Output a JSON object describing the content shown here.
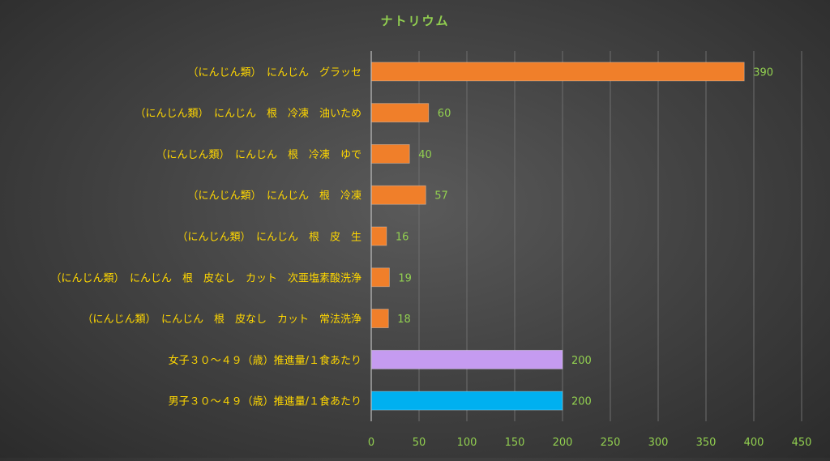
{
  "chart_data": {
    "type": "bar",
    "orientation": "horizontal",
    "title": "ナトリウム",
    "categories": [
      "（にんじん類）　にんじん　グラッセ",
      "（にんじん類）　にんじん　根　冷凍　油いため",
      "（にんじん類）　にんじん　根　冷凍　ゆで",
      "（にんじん類）　にんじん　根　冷凍",
      "（にんじん類）　にんじん　根　皮　生",
      "（にんじん類）　にんじん　根　皮なし　カット　次亜塩素酸洗浄",
      "（にんじん類）　にんじん　根　皮なし　カット　常法洗浄",
      "女子３０～４９（歳）推進量/１食あたり",
      "男子３０～４９（歳）推進量/１食あたり"
    ],
    "values": [
      390,
      60,
      40,
      57,
      16,
      19,
      18,
      200,
      200
    ],
    "value_labels": [
      "390",
      "60",
      "40",
      "57",
      "16",
      "19",
      "18",
      "200",
      "200"
    ],
    "bar_colors": [
      "#F07F2A",
      "#F07F2A",
      "#F07F2A",
      "#F07F2A",
      "#F07F2A",
      "#F07F2A",
      "#F07F2A",
      "#C59BF0",
      "#00B0F0"
    ],
    "xlim": [
      0,
      450
    ],
    "x_ticks": [
      0,
      50,
      100,
      150,
      200,
      250,
      300,
      350,
      400,
      450
    ],
    "grid": true,
    "legend": "none",
    "colors": {
      "title": "#92D050",
      "category_labels": "#FFD700",
      "value_labels": "#92D050",
      "tick_labels": "#92D050",
      "gridlines": "#6E6E6E",
      "axis": "#BFBFBF"
    }
  }
}
